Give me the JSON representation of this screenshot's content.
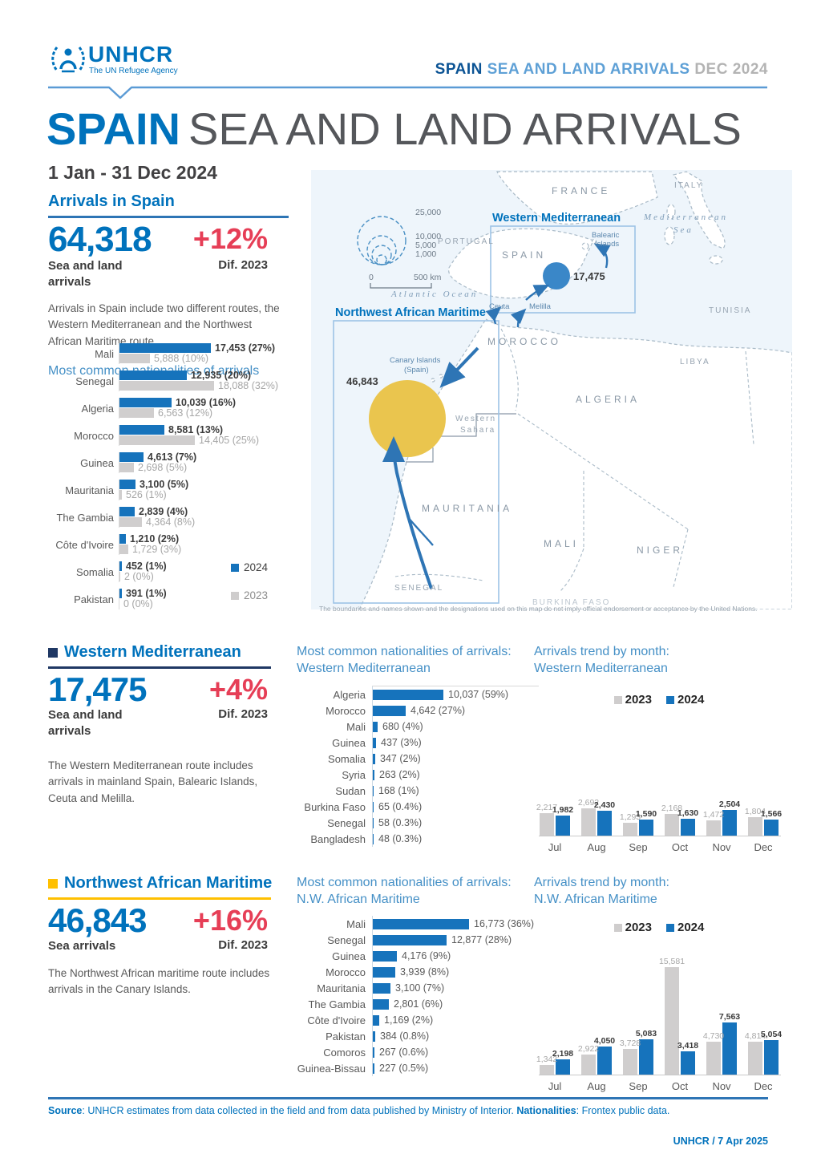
{
  "colors": {
    "unhcr_blue": "#0072BC",
    "bar_blue": "#1673bc",
    "bar_gray": "#d0cece",
    "accent_red": "#e63e56",
    "navy": "#1f3864",
    "yellow": "#ffc000"
  },
  "header": {
    "logo": {
      "name": "UNHCR",
      "tagline": "The UN Refugee Agency"
    },
    "doc_ref": {
      "strong": "SPAIN",
      "mid": " SEA AND LAND ARRIVALS ",
      "date": "DEC 2024"
    }
  },
  "title": {
    "strong": "SPAIN",
    "rest": "SEA AND LAND ARRIVALS",
    "period": "1 Jan - 31 Dec 2024"
  },
  "overview": {
    "heading": "Arrivals in Spain",
    "value": "64,318",
    "value_label": "Sea and land arrivals",
    "diff": "+12%",
    "diff_label": "Dif. 2023",
    "description": "Arrivals in Spain include two different routes, the Western Mediterranean and the Northwest African Maritime route.",
    "chart_heading": "Most common nationalities of arrivals"
  },
  "western_med": {
    "heading": "Western Mediterranean",
    "value": "17,475",
    "value_label": "Sea and land arrivals",
    "diff": "+4%",
    "diff_label": "Dif. 2023",
    "description": "The Western Mediterranean route includes arrivals in mainland Spain, Balearic Islands, Ceuta and Melilla.",
    "nat_heading_1": "Most common nationalities of arrivals:",
    "nat_heading_2": "Western Mediterranean",
    "trend_heading_1": "Arrivals trend by month:",
    "trend_heading_2": "Western Mediterranean"
  },
  "nw_african": {
    "heading": "Northwest African Maritime",
    "value": "46,843",
    "value_label": "Sea arrivals",
    "diff": "+16%",
    "diff_label": "Dif. 2023",
    "description": "The Northwest African maritime route includes arrivals in the Canary Islands.",
    "nat_heading_1": "Most common nationalities of arrivals:",
    "nat_heading_2": "N.W. African Maritime",
    "trend_heading_1": "Arrivals trend by month:",
    "trend_heading_2": "N.W. African Maritime"
  },
  "map": {
    "legend_circles": [
      "25,000",
      "10,000",
      "5,000",
      "1,000"
    ],
    "scale": {
      "start": "0",
      "end": "500 km"
    },
    "oceans": {
      "atlantic": "Atlantic Ocean",
      "med_1": "Mediterranean",
      "med_2": "Sea"
    },
    "routes": {
      "wm_label": "Western Mediterranean",
      "wm_value": "17,475",
      "nwam_label": "Northwest African Maritime",
      "nwam_value": "46,843"
    },
    "places": {
      "france": "FRANCE",
      "italy": "ITALY",
      "portugal": "PORTUGAL",
      "spain": "SPAIN",
      "morocco": "MOROCCO",
      "algeria": "ALGERIA",
      "tunisia": "TUNISIA",
      "libya": "LIBYA",
      "western_sahara_1": "Western",
      "western_sahara_2": "Sahara",
      "mauritania": "MAURITANIA",
      "mali": "MALI",
      "niger": "NIGER",
      "senegal": "SENEGAL",
      "burkina_faso": "BURKINA FASO",
      "balearic_1": "Balearic",
      "balearic_2": "Islands",
      "ceuta": "Ceuta",
      "melilla": "Melilla",
      "canary_1": "Canary Islands",
      "canary_2": "(Spain)"
    },
    "disclaimer": "The boundaries and names shown and the designations used on this map do not imply official endorsement or acceptance by the United Nations."
  },
  "footer": {
    "source_label": "Source",
    "source_text": ": UNHCR estimates from data collected in the field and from data published by Ministry of Interior. ",
    "nationalities_label": "Nationalities",
    "nationalities_text": ": Frontex public data.",
    "credit": "UNHCR / 7 Apr 2025"
  },
  "chart_data": {
    "overview_nationalities": {
      "type": "bar",
      "orientation": "horizontal",
      "title": "Most common nationalities of arrivals",
      "legend_position": "right-bottom",
      "categories": [
        "Mali",
        "Senegal",
        "Algeria",
        "Morocco",
        "Guinea",
        "Mauritania",
        "The Gambia",
        "Côte d'Ivoire",
        "Somalia",
        "Pakistan"
      ],
      "series": [
        {
          "name": "2024",
          "values": [
            17453,
            12935,
            10039,
            8581,
            4613,
            3100,
            2839,
            1210,
            452,
            391
          ],
          "labels": [
            "17,453 (27%)",
            "12,935 (20%)",
            "10,039 (16%)",
            "8,581 (13%)",
            "4,613 (7%)",
            "3,100 (5%)",
            "2,839 (4%)",
            "1,210 (2%)",
            "452 (1%)",
            "391 (1%)"
          ]
        },
        {
          "name": "2023",
          "values": [
            5888,
            18088,
            6563,
            14405,
            2698,
            526,
            4364,
            1729,
            2,
            0
          ],
          "labels": [
            "5,888 (10%)",
            "18,088 (32%)",
            "6,563 (12%)",
            "14,405 (25%)",
            "2,698 (5%)",
            "526 (1%)",
            "4,364 (8%)",
            "1,729 (3%)",
            "2 (0%)",
            "0 (0%)"
          ]
        }
      ]
    },
    "wm_nationalities": {
      "type": "bar",
      "orientation": "horizontal",
      "title": "Most common nationalities of arrivals: Western Mediterranean",
      "categories": [
        "Algeria",
        "Morocco",
        "Mali",
        "Guinea",
        "Somalia",
        "Syria",
        "Sudan",
        "Burkina Faso",
        "Senegal",
        "Bangladesh"
      ],
      "values": [
        10037,
        4642,
        680,
        437,
        347,
        263,
        168,
        65,
        58,
        48
      ],
      "labels": [
        "10,037 (59%)",
        "4,642 (27%)",
        "680 (4%)",
        "437 (3%)",
        "347 (2%)",
        "263 (2%)",
        "168 (1%)",
        "65 (0.4%)",
        "58 (0.3%)",
        "48 (0.3%)"
      ]
    },
    "wm_trend": {
      "type": "bar",
      "orientation": "vertical",
      "title": "Arrivals trend by month: Western Mediterranean",
      "legend": [
        "2023",
        "2024"
      ],
      "categories": [
        "Jul",
        "Aug",
        "Sep",
        "Oct",
        "Nov",
        "Dec"
      ],
      "series": [
        {
          "name": "2023",
          "values": [
            2217,
            2692,
            1293,
            2168,
            1472,
            1804
          ],
          "labels": [
            "2,217",
            "2,692",
            "1,293",
            "2,168",
            "1,472",
            "1,804"
          ]
        },
        {
          "name": "2024",
          "values": [
            1982,
            2430,
            1590,
            1630,
            2504,
            1566
          ],
          "labels": [
            "1,982",
            "2,430",
            "1,590",
            "1,630",
            "2,504",
            "1,566"
          ]
        }
      ]
    },
    "nwam_nationalities": {
      "type": "bar",
      "orientation": "horizontal",
      "title": "Most common nationalities of arrivals: N.W. African Maritime",
      "categories": [
        "Mali",
        "Senegal",
        "Guinea",
        "Morocco",
        "Mauritania",
        "The Gambia",
        "Côte d'Ivoire",
        "Pakistan",
        "Comoros",
        "Guinea-Bissau"
      ],
      "values": [
        16773,
        12877,
        4176,
        3939,
        3100,
        2801,
        1169,
        384,
        267,
        227
      ],
      "labels": [
        "16,773 (36%)",
        "12,877 (28%)",
        "4,176 (9%)",
        "3,939 (8%)",
        "3,100 (7%)",
        "2,801 (6%)",
        "1,169 (2%)",
        "384 (0.8%)",
        "267 (0.6%)",
        "227 (0.5%)"
      ]
    },
    "nwam_trend": {
      "type": "bar",
      "orientation": "vertical",
      "title": "Arrivals trend by month: N.W. African Maritime",
      "legend": [
        "2023",
        "2024"
      ],
      "categories": [
        "Jul",
        "Aug",
        "Sep",
        "Oct",
        "Nov",
        "Dec"
      ],
      "series": [
        {
          "name": "2023",
          "values": [
            1342,
            2922,
            3728,
            15581,
            4730,
            4814
          ],
          "labels": [
            "1,342",
            "2,922",
            "3,728",
            "15,581",
            "4,730",
            "4,814"
          ]
        },
        {
          "name": "2024",
          "values": [
            2198,
            4050,
            5083,
            3418,
            7563,
            5054
          ],
          "labels": [
            "2,198",
            "4,050",
            "5,083",
            "3,418",
            "7,563",
            "5,054"
          ]
        }
      ]
    }
  }
}
